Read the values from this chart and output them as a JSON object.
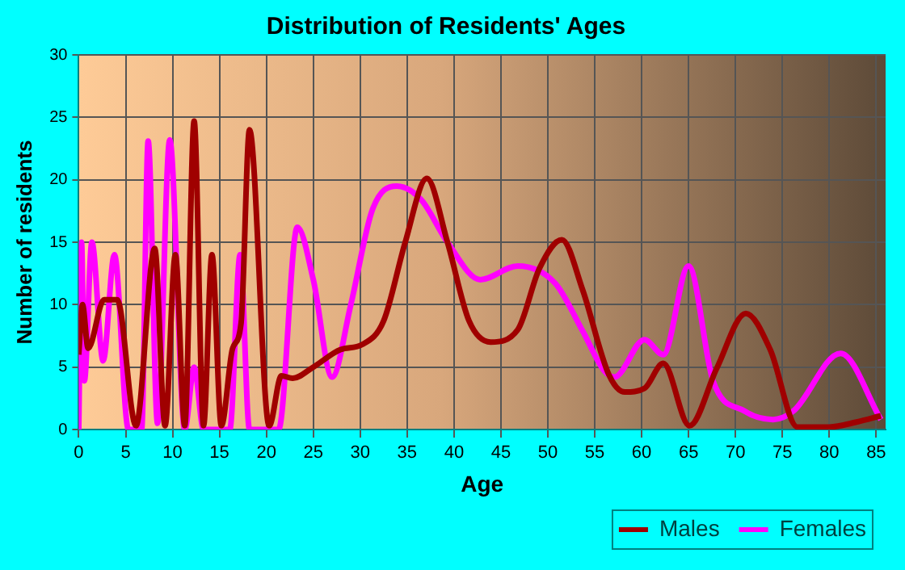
{
  "chart_data": {
    "type": "line",
    "title": "Distribution of Residents' Ages",
    "xlabel": "Age",
    "ylabel": "Number of residents",
    "xlim": [
      0,
      86
    ],
    "xticks": [
      0,
      5,
      10,
      15,
      20,
      25,
      30,
      35,
      40,
      45,
      50,
      55,
      60,
      65,
      70,
      75,
      80,
      85
    ],
    "ylim": [
      0,
      30
    ],
    "yticks": [
      0,
      5,
      10,
      15,
      20,
      25,
      30
    ],
    "grid": true,
    "legend": "bottom right",
    "marker": "none",
    "series": [
      {
        "name": "Males",
        "color": "#a00000",
        "x": [
          0,
          0.4,
          1,
          2.7,
          4.1,
          6.1,
          8.1,
          9.2,
          10.3,
          11.3,
          12.3,
          13.3,
          14.2,
          15.2,
          16.4,
          17.3,
          18.2,
          20.3,
          21.6,
          22.8,
          25,
          27.9,
          30.2,
          32.5,
          34.8,
          37.1,
          39.3,
          41.6,
          43.9,
          46.8,
          49.1,
          51.5,
          53.7,
          56.5,
          58.2,
          60.3,
          62.3,
          65.1,
          68,
          71.1,
          73.7,
          76.6,
          80,
          82.9,
          85.5
        ],
        "values": [
          6,
          10,
          6.5,
          10.4,
          10.4,
          0.3,
          14.5,
          0.3,
          14,
          0.3,
          24.7,
          0.3,
          14,
          0.3,
          6.5,
          8.5,
          24,
          0.3,
          4.3,
          4.1,
          5,
          6.4,
          6.8,
          8.7,
          15,
          20.1,
          15,
          8.7,
          7,
          8,
          12.9,
          15.2,
          11.2,
          4.4,
          3,
          3.3,
          5.3,
          0.3,
          4.9,
          9.3,
          6.4,
          0.2,
          0.2,
          0.6,
          1.1
        ]
      },
      {
        "name": "Females",
        "color": "#ff00ff",
        "x": [
          0,
          0.3,
          0.6,
          1.4,
          2.6,
          3.8,
          5.3,
          6.7,
          7.4,
          8.4,
          9.7,
          11.3,
          12.3,
          13.3,
          16.1,
          17.2,
          18.2,
          21.3,
          23.3,
          25,
          27,
          29,
          31.3,
          33.9,
          36.5,
          39.3,
          42.8,
          46.8,
          50.8,
          53.7,
          56,
          57.1,
          60.3,
          62.3,
          65,
          67.6,
          70.9,
          74,
          76.2,
          81.2,
          85.5
        ],
        "values": [
          0,
          15,
          3.9,
          15,
          5.5,
          14,
          0,
          0,
          23.1,
          0.5,
          23.2,
          0,
          5,
          0,
          0,
          14,
          0,
          0,
          16.2,
          12,
          4.2,
          10,
          17.6,
          19.5,
          18.4,
          15,
          12,
          13.1,
          11.7,
          7.9,
          4.7,
          4.2,
          7.2,
          6,
          13.1,
          3.9,
          1.5,
          0.8,
          1.5,
          6.1,
          0.8
        ]
      }
    ]
  }
}
